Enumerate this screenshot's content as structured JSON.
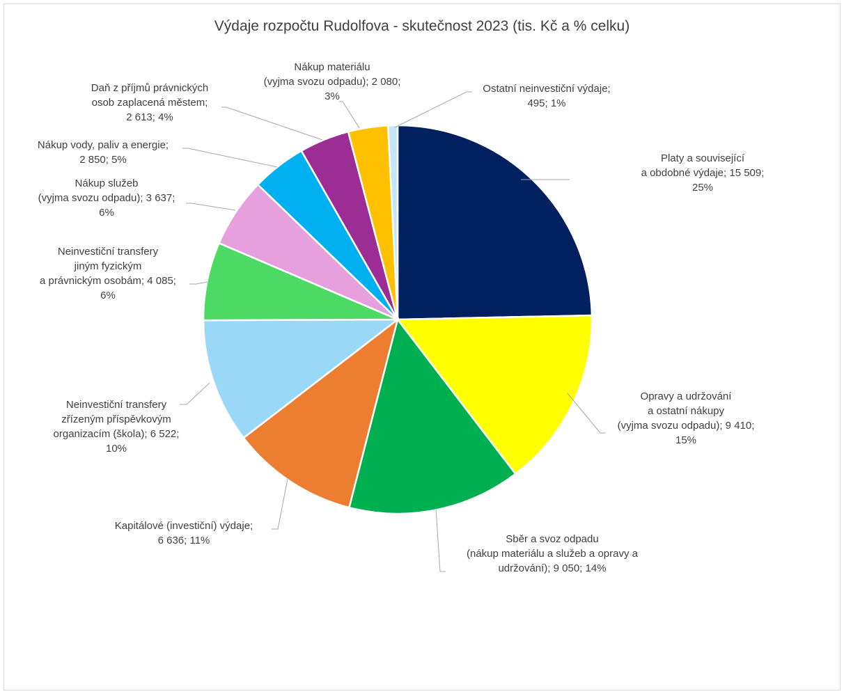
{
  "chart_data": {
    "type": "pie",
    "title": "Výdaje rozpočtu Rudolfova - skutečnost 2023 (tis. Kč a % celku)",
    "slices": [
      {
        "name": "Platy a související a obdobné výdaje",
        "value": 15509,
        "percent": 25,
        "color": "#002060",
        "label_lines": [
          "Platy a související",
          "a obdobné výdaje;  15 509;",
          "25%"
        ]
      },
      {
        "name": "Opravy a udržování a ostatní nákupy (vyjma svozu odpadu)",
        "value": 9410,
        "percent": 15,
        "color": "#ffff00",
        "label_lines": [
          "Opravy a udržování",
          "a ostatní nákupy",
          "(vyjma  svozu odpadu); 9 410;",
          "15%"
        ]
      },
      {
        "name": "Sběr a svoz odpadu (nákup materiálu a služeb a opravy a udržování)",
        "value": 9050,
        "percent": 14,
        "color": "#00b050",
        "label_lines": [
          "Sběr a svoz odpadu",
          "(nákup materiálu  a služeb a opravy a",
          "udržování);  9 050; 14%"
        ]
      },
      {
        "name": "Kapitálové (investiční) výdaje",
        "value": 6636,
        "percent": 11,
        "color": "#ed7d31",
        "label_lines": [
          "Kapitálové  (investiční)  výdaje;",
          "6 636; 11%"
        ]
      },
      {
        "name": "Neinvestiční transfery zřízeným příspěvkovým organizacím (škola)",
        "value": 6522,
        "percent": 10,
        "color": "#99d9f7",
        "label_lines": [
          "Neinvestiční transfery",
          "zřízeným  příspěvkovým",
          "organizacím  (škola);  6 522;",
          "10%"
        ]
      },
      {
        "name": "Neinvestiční transfery jiným fyzickým a právnickým osobám",
        "value": 4085,
        "percent": 6,
        "color": "#4cd964",
        "label_lines": [
          "Neinvestiční transfery",
          "jiným fyzickým",
          "a právnickým  osobám; 4 085;",
          "6%"
        ]
      },
      {
        "name": "Nákup služeb (vyjma svozu odpadu)",
        "value": 3637,
        "percent": 6,
        "color": "#e6a0de",
        "label_lines": [
          "Nákup služeb",
          "(vyjma  svozu odpadu); 3 637;",
          "6%"
        ]
      },
      {
        "name": "Nákup vody, paliv a energie",
        "value": 2850,
        "percent": 5,
        "color": "#00b0f0",
        "label_lines": [
          "Nákup vody,  paliv a energie;",
          "2 850; 5%"
        ]
      },
      {
        "name": "Daň z příjmů právnických osob zaplacená městem",
        "value": 2613,
        "percent": 4,
        "color": "#9b2d95",
        "label_lines": [
          "Daň z příjmů právnických",
          "osob zaplacená  městem;",
          "2 613; 4%"
        ]
      },
      {
        "name": "Nákup materiálu (vyjma svozu odpadu)",
        "value": 2080,
        "percent": 3,
        "color": "#ffc000",
        "label_lines": [
          "Nákup materiálu",
          "(vyjma  svozu odpadu); 2 080;",
          "3%"
        ]
      },
      {
        "name": "Ostatní neinvestiční výdaje",
        "value": 495,
        "percent": 1,
        "color": "#c5e6f7",
        "label_lines": [
          "Ostatní neinvestiční výdaje;",
          "495; 1%"
        ]
      }
    ],
    "legend": "none"
  }
}
